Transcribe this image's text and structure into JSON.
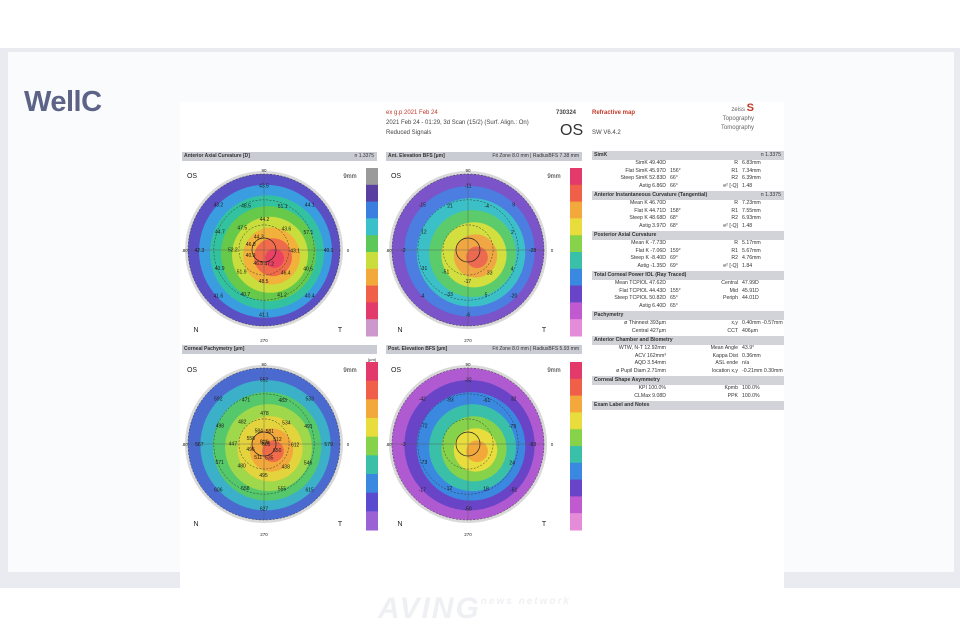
{
  "brand": {
    "logo_text": "WellC"
  },
  "header": {
    "line1": "ex g.p 2021 Feb 24",
    "id": "730324",
    "line2": "2021 Feb 24 - 01:29, 3d Scan (15/2) (Surf. Align.: On)",
    "line3": "Reduced Signals",
    "eye": "OS",
    "map_title": "Refractive map",
    "sw": "SW V6.4.2",
    "vendor_small": "zeiss",
    "vendor_mark": "S",
    "vendor_line1": "Topography",
    "vendor_line2": "Tomography"
  },
  "maps": [
    {
      "title": "Anterior Axial Curvature [D]",
      "right": "n 1.3375",
      "scheme": "axial"
    },
    {
      "title": "Ant. Elevation BFS [µm]",
      "right": "Fit Zone 8.0 mm | RadiusBFS 7.38 mm",
      "scheme": "elev"
    },
    {
      "title": "Corneal Pachymetry [µm]",
      "right": "",
      "scheme": "pachy"
    },
    {
      "title": "Post. Elevation BFS [µm]",
      "right": "Fit Zone 8.0 mm | RadiusBFS 5.93 mm",
      "scheme": "elev2"
    }
  ],
  "map_labels": {
    "os": "OS",
    "mm": "9mm",
    "n": "N",
    "t": "T",
    "deg90": "90",
    "deg270": "270",
    "deg0": "0",
    "deg180": "180",
    "unit": "[µm]"
  },
  "axial_values": [
    "40.1",
    "40.4",
    "41.1",
    "41.6",
    "42.3",
    "43.2",
    "43.5",
    "44.1",
    "40.5",
    "41.2",
    "40.7",
    "40.9",
    "44.7",
    "48.5",
    "51.1",
    "57.1",
    "46.4",
    "48.5",
    "51.9",
    "52.2",
    "47.5",
    "44.2",
    "43.6",
    "43.1",
    "47.2",
    "46.5",
    "40.9",
    "46.8",
    "44.3"
  ],
  "pachy_values": [
    "579",
    "615",
    "627",
    "606",
    "567",
    "592",
    "552",
    "533",
    "546",
    "555",
    "558",
    "571",
    "498",
    "471",
    "483",
    "491",
    "438",
    "495",
    "480",
    "447",
    "482",
    "478",
    "534",
    "612",
    "535",
    "511",
    "496",
    "558",
    "584",
    "581",
    "512",
    "650",
    "616",
    "574",
    "601"
  ],
  "elev_values": [
    "-28",
    "-20",
    "-6",
    "-4",
    "-2",
    "-15",
    "-11",
    "9",
    "4",
    "5",
    "-33",
    "-31",
    "12",
    "21",
    "-4",
    "2",
    "33",
    "-17",
    "-51"
  ],
  "elev2_values": [
    "-93",
    "-51",
    "-50",
    "-17",
    "-3",
    "-42",
    "-32",
    "32",
    "24",
    "18",
    "12",
    "-73",
    "-72",
    "-93",
    "-61",
    "-79"
  ],
  "sections": [
    {
      "title": "SimK",
      "right": "n 1.3375",
      "rows": [
        [
          "SimK 49.40D",
          "",
          "R",
          "6.83mm"
        ],
        [
          "Flat SimK 45.97D",
          "156°",
          "R1",
          "7.34mm"
        ],
        [
          "Steep SimK 52.83D",
          "66°",
          "R2",
          "6.39mm"
        ],
        [
          "Astig 6.86D",
          "66°",
          "e² [-Q]",
          "1.48"
        ]
      ]
    },
    {
      "title": "Anterior Instantaneous Curvature (Tangential)",
      "right": "n 1.3375",
      "rows": [
        [
          "Mean K 46.70D",
          "",
          "R",
          "7.23mm"
        ],
        [
          "Flat K 44.71D",
          "158°",
          "R1",
          "7.55mm"
        ],
        [
          "Steep K 48.68D",
          "68°",
          "R2",
          "6.93mm"
        ],
        [
          "Astig 3.97D",
          "68°",
          "e² [-Q]",
          "1.48"
        ]
      ]
    },
    {
      "title": "Posterior Axial Curvature",
      "right": "",
      "rows": [
        [
          "Mean K -7.73D",
          "",
          "R",
          "5.17mm"
        ],
        [
          "Flat K -7.06D",
          "159°",
          "R1",
          "5.67mm"
        ],
        [
          "Steep K -8.40D",
          "69°",
          "R2",
          "4.76mm"
        ],
        [
          "Astig -1.35D",
          "69°",
          "e² [-Q]",
          "1.84"
        ]
      ]
    },
    {
      "title": "Total Corneal Power IOL (Ray Traced)",
      "right": "",
      "rows": [
        [
          "Mean TCPIOL 47.62D",
          "",
          "Central",
          "47.99D"
        ],
        [
          "Flat TCPIOL 44.43D",
          "155°",
          "Mid",
          "45.91D"
        ],
        [
          "Steep TCPIOL 50.82D",
          "65°",
          "Periph",
          "44.01D"
        ],
        [
          "Astig 6.40D",
          "65°",
          "",
          ""
        ]
      ]
    },
    {
      "title": "Pachymetry",
      "right": "",
      "rows": [
        [
          "ø Thinnest 393µm",
          "",
          "x,y",
          "0.40mm -0.57mm"
        ],
        [
          "Central 427µm",
          "",
          "CCT",
          "406µm"
        ]
      ]
    },
    {
      "title": "Anterior Chamber and Biometry",
      "right": "",
      "rows": [
        [
          "WTW, N-T 12.92mm",
          "",
          "Mean Angle",
          "43.9°"
        ],
        [
          "ACV 162mm³",
          "",
          "Kappa Dist",
          "0.36mm"
        ],
        [
          "AQD 3.54mm",
          "",
          "ASL ende",
          "n/a"
        ],
        [
          "ø Pupil Diam 2.71mm",
          "",
          "location x,y",
          "-0.21mm 0.30mm"
        ]
      ]
    },
    {
      "title": "Corneal Shape Asymmetry",
      "right": "",
      "rows": [
        [
          "KPI 100.0%",
          "",
          "Kpmb",
          "100.0%"
        ],
        [
          "CLMax 9.08D",
          "",
          "PPK",
          "100.0%"
        ]
      ]
    },
    {
      "title": "Exam Label and Notes",
      "right": "",
      "rows": []
    }
  ],
  "watermark": {
    "text": "AVING",
    "small": "news network"
  },
  "colors": {
    "screen_bg": "#e9ebf1",
    "logo": "#5d6386",
    "accent_red": "#c0392b",
    "bar_gray": "#c9ccd2"
  }
}
